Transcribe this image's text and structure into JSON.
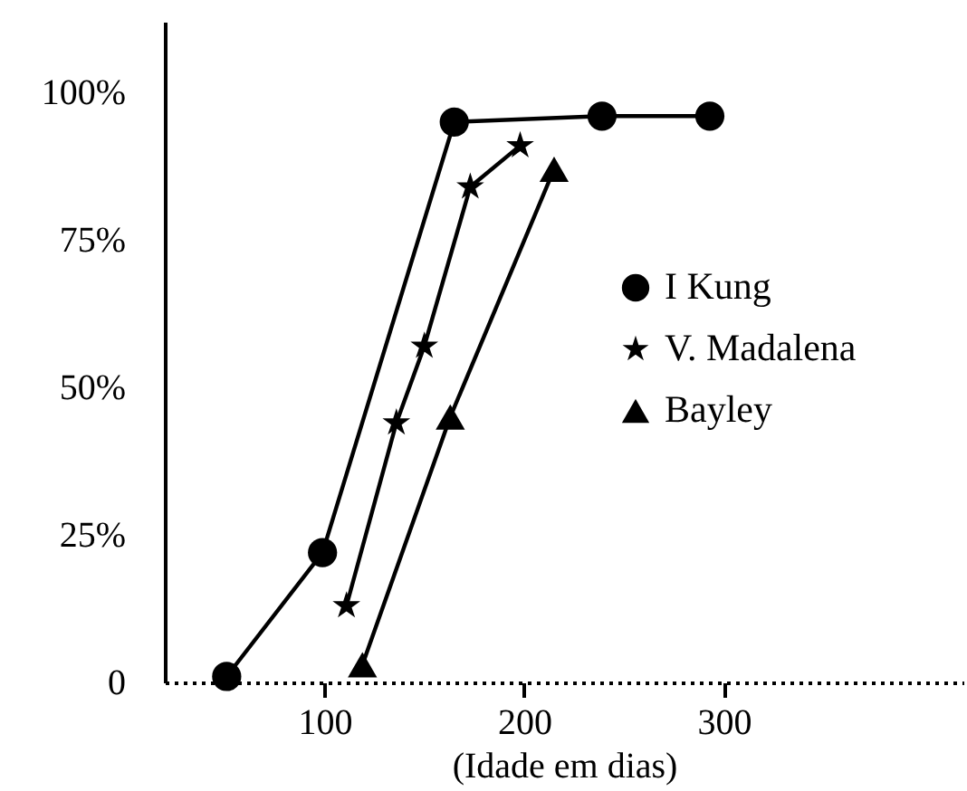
{
  "chart_data": {
    "type": "line",
    "xlabel": "(Idade em dias)",
    "xlim": [
      20,
      420
    ],
    "xticks": [
      100,
      200,
      300
    ],
    "ylim": [
      0,
      112
    ],
    "yticks": [
      {
        "value": 0,
        "label": "0"
      },
      {
        "value": 25,
        "label": "25%"
      },
      {
        "value": 50,
        "label": "50%"
      },
      {
        "value": 75,
        "label": "75%"
      },
      {
        "value": 100,
        "label": "100%"
      }
    ],
    "grid": false,
    "legend": "right",
    "series": [
      {
        "name": "I Kung",
        "color": "#000000",
        "marker": "circle",
        "x": [
          51,
          99,
          165,
          239,
          293
        ],
        "values": [
          1,
          22,
          95,
          96,
          96
        ]
      },
      {
        "name": "V. Madalena",
        "color": "#000000",
        "marker": "star",
        "x": [
          111,
          136,
          150,
          173,
          198
        ],
        "values": [
          13,
          44,
          57,
          84,
          91
        ]
      },
      {
        "name": "Bayley",
        "color": "#000000",
        "marker": "triangle",
        "x": [
          119,
          163,
          215
        ],
        "values": [
          3,
          45,
          87
        ]
      }
    ]
  }
}
